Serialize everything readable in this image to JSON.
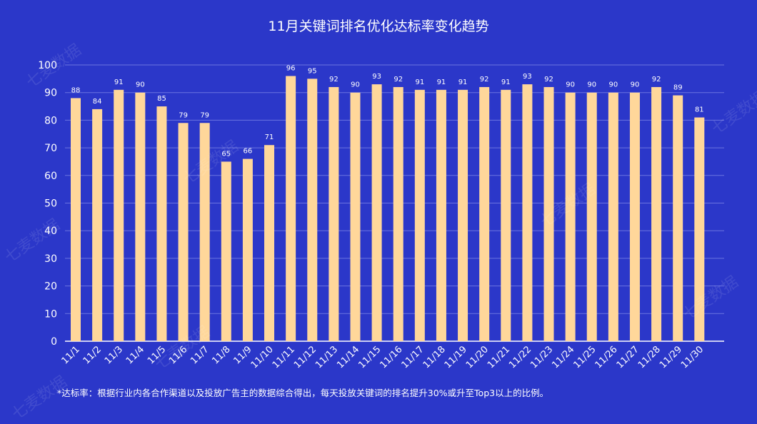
{
  "chart_data": {
    "type": "bar",
    "title": "11月关键词排名优化达标率变化趋势",
    "categories": [
      "11/1",
      "11/2",
      "11/3",
      "11/4",
      "11/5",
      "11/6",
      "11/7",
      "11/8",
      "11/9",
      "11/10",
      "11/11",
      "11/12",
      "11/13",
      "11/14",
      "11/15",
      "11/16",
      "11/17",
      "11/18",
      "11/19",
      "11/20",
      "11/21",
      "11/22",
      "11/23",
      "11/24",
      "11/25",
      "11/26",
      "11/27",
      "11/28",
      "11/29",
      "11/30"
    ],
    "values": [
      88,
      84,
      91,
      90,
      85,
      79,
      79,
      65,
      66,
      71,
      96,
      95,
      92,
      90,
      93,
      92,
      91,
      91,
      91,
      92,
      91,
      93,
      92,
      90,
      90,
      90,
      90,
      92,
      89,
      81
    ],
    "ylim": [
      0,
      100
    ],
    "yticks": [
      0,
      10,
      20,
      30,
      40,
      50,
      60,
      70,
      80,
      90,
      100
    ],
    "grid": true,
    "bar_color": "#ffd79a",
    "background_color": "#2b37c9",
    "grid_color": "#6b74e0"
  },
  "footnote": "*达标率：根据行业内各合作渠道以及投放广告主的数据综合得出，每天投放关键词的排名提升30%或升至Top3以上的比例。",
  "watermark": "七麦数据"
}
